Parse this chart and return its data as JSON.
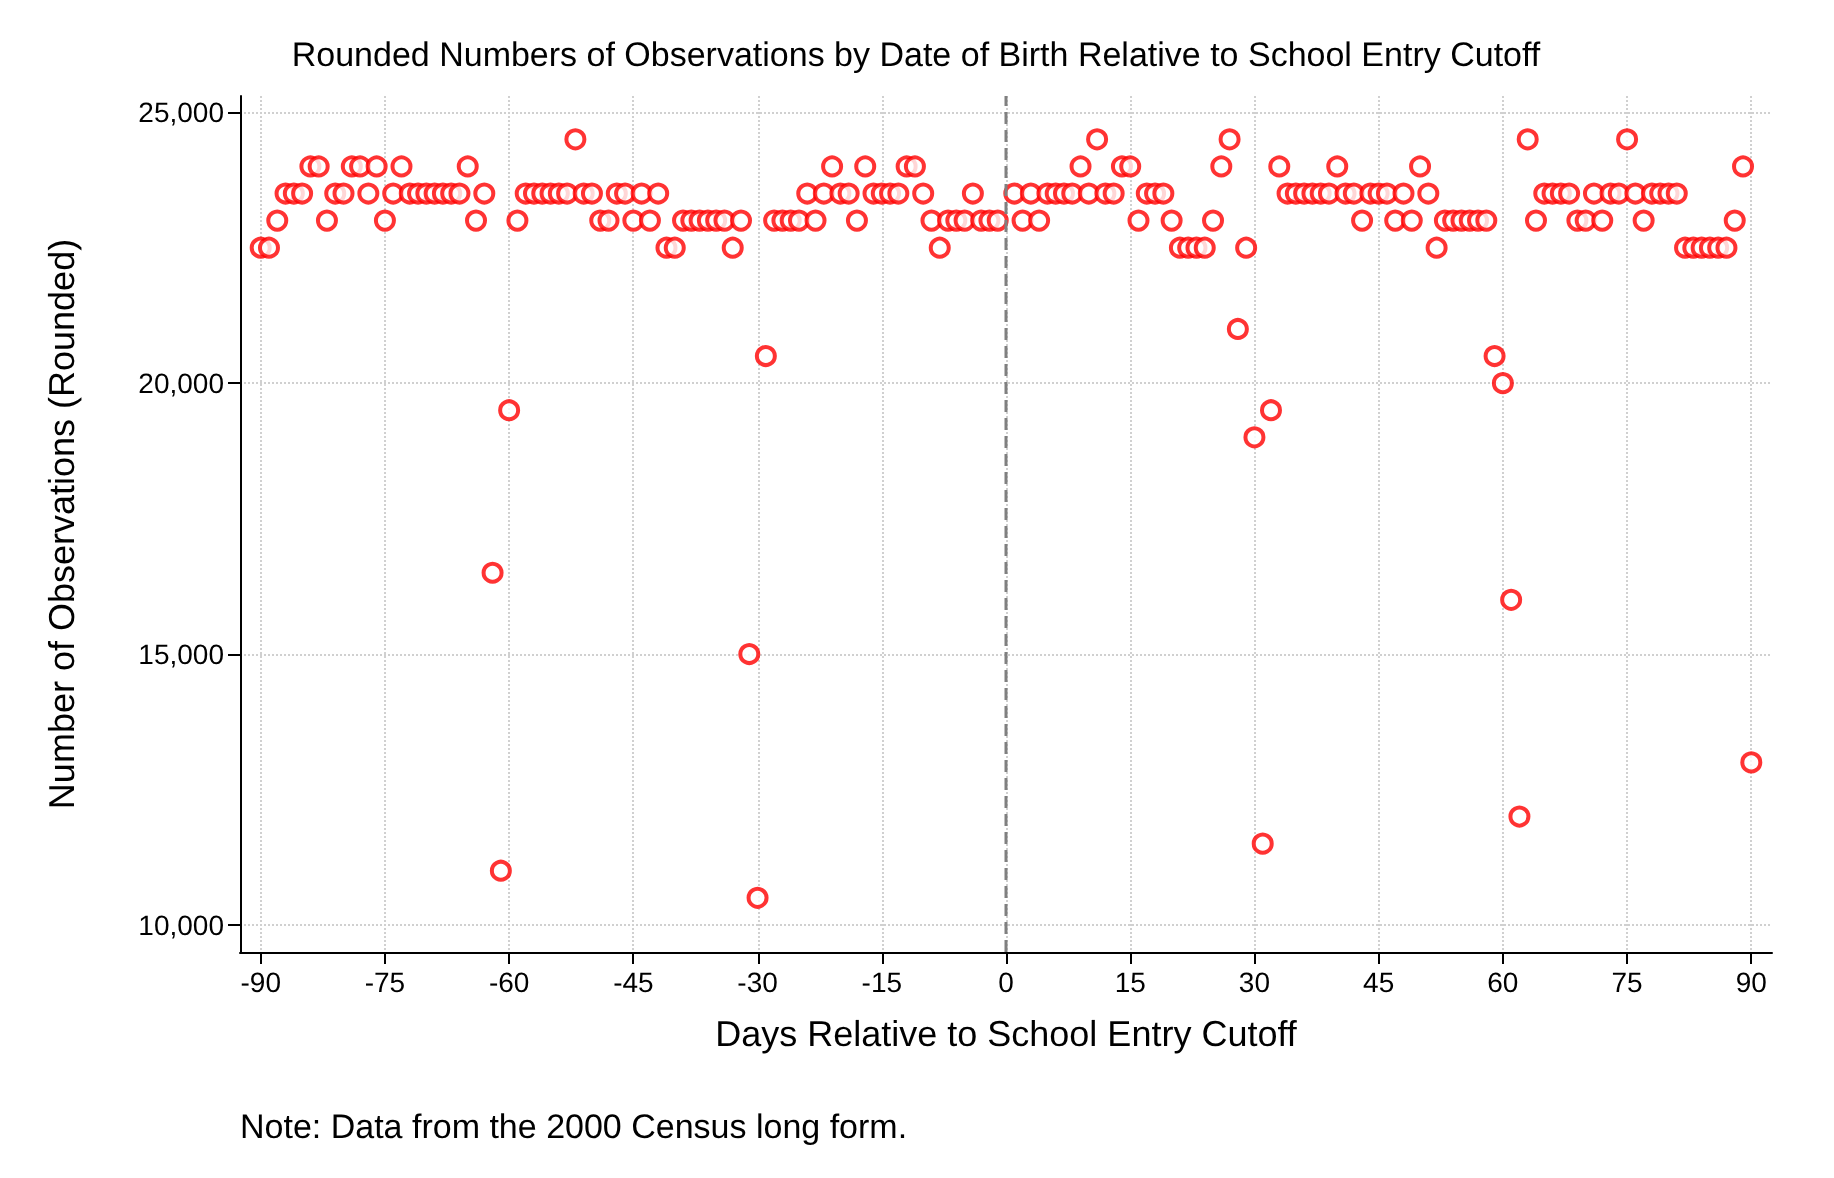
{
  "chart_data": {
    "type": "scatter",
    "title": "Rounded Numbers of Observations by Date of Birth Relative to School Entry Cutoff",
    "xlabel": "Days Relative to School Entry Cutoff",
    "ylabel": "Number of Observations (Rounded)",
    "annotations": [
      "Note: Data from the 2000 Census long form."
    ],
    "x": [
      -90,
      -89,
      -88,
      -87,
      -86,
      -85,
      -84,
      -83,
      -82,
      -81,
      -80,
      -79,
      -78,
      -77,
      -76,
      -75,
      -74,
      -73,
      -72,
      -71,
      -70,
      -69,
      -68,
      -67,
      -66,
      -65,
      -64,
      -63,
      -62,
      -61,
      -60,
      -59,
      -58,
      -57,
      -56,
      -55,
      -54,
      -53,
      -52,
      -51,
      -50,
      -49,
      -48,
      -47,
      -46,
      -45,
      -44,
      -43,
      -42,
      -41,
      -40,
      -39,
      -38,
      -37,
      -36,
      -35,
      -34,
      -33,
      -32,
      -31,
      -30,
      -29,
      -28,
      -27,
      -26,
      -25,
      -24,
      -23,
      -22,
      -21,
      -20,
      -19,
      -18,
      -17,
      -16,
      -15,
      -14,
      -13,
      -12,
      -11,
      -10,
      -9,
      -8,
      -7,
      -6,
      -5,
      -4,
      -3,
      -2,
      -1,
      0,
      1,
      2,
      3,
      4,
      5,
      6,
      7,
      8,
      9,
      10,
      11,
      12,
      13,
      14,
      15,
      16,
      17,
      18,
      19,
      20,
      21,
      22,
      23,
      24,
      25,
      26,
      27,
      28,
      29,
      30,
      31,
      32,
      33,
      34,
      35,
      36,
      37,
      38,
      39,
      40,
      41,
      42,
      43,
      44,
      45,
      46,
      47,
      48,
      49,
      50,
      51,
      52,
      53,
      54,
      55,
      56,
      57,
      58,
      59,
      60,
      61,
      62,
      63,
      64,
      65,
      66,
      67,
      68,
      69,
      70,
      71,
      72,
      73,
      74,
      75,
      76,
      77,
      78,
      79,
      80,
      81,
      82,
      83,
      84,
      85,
      86,
      87,
      88,
      89,
      90
    ],
    "series": [
      {
        "color": "#ff0000",
        "values": [
          22500,
          22500,
          23000,
          23500,
          23500,
          23500,
          24000,
          24000,
          23000,
          23500,
          23500,
          24000,
          24000,
          23500,
          24000,
          23000,
          23500,
          24000,
          23500,
          23500,
          23500,
          23500,
          23500,
          23500,
          23500,
          24000,
          23000,
          23500,
          16500,
          11000,
          19500,
          23000,
          23500,
          23500,
          23500,
          23500,
          23500,
          23500,
          24500,
          23500,
          23500,
          23000,
          23000,
          23500,
          23500,
          23000,
          23500,
          23000,
          23500,
          22500,
          22500,
          23000,
          23000,
          23000,
          23000,
          23000,
          23000,
          22500,
          23000,
          15000,
          10500,
          20500,
          23000,
          23000,
          23000,
          23000,
          23500,
          23000,
          23500,
          24000,
          23500,
          23500,
          23000,
          24000,
          23500,
          23500,
          23500,
          23500,
          24000,
          24000,
          23500,
          23000,
          22500,
          23000,
          23000,
          23000,
          23500,
          23000,
          23000,
          23000,
          null,
          23500,
          23000,
          23500,
          23000,
          23500,
          23500,
          23500,
          23500,
          24000,
          23500,
          24500,
          23500,
          23500,
          24000,
          24000,
          23000,
          23500,
          23500,
          23500,
          23000,
          22500,
          22500,
          22500,
          22500,
          23000,
          24000,
          24500,
          21000,
          22500,
          19000,
          11500,
          19500,
          24000,
          23500,
          23500,
          23500,
          23500,
          23500,
          23500,
          24000,
          23500,
          23500,
          23000,
          23500,
          23500,
          23500,
          23000,
          23500,
          23000,
          24000,
          23500,
          22500,
          23000,
          23000,
          23000,
          23000,
          23000,
          23000,
          20500,
          20000,
          16000,
          12000,
          24500,
          23000,
          23500,
          23500,
          23500,
          23500,
          23000,
          23000,
          23500,
          23000,
          23500,
          23500,
          24500,
          23500,
          23000,
          23500,
          23500,
          23500,
          23500,
          22500,
          22500,
          22500,
          22500,
          22500,
          22500,
          23000,
          24000,
          13000
        ]
      }
    ],
    "marker": "circle",
    "xlim": [
      -92.5,
      92.5
    ],
    "xticks": [
      -90,
      -75,
      -60,
      -45,
      -30,
      -15,
      0,
      15,
      30,
      45,
      60,
      75,
      90
    ],
    "ylim": [
      9500,
      25300
    ],
    "yticks": [
      {
        "value": 10000,
        "label": "10,000"
      },
      {
        "value": 15000,
        "label": "15,000"
      },
      {
        "value": 20000,
        "label": "20,000"
      },
      {
        "value": 25000,
        "label": "25,000"
      }
    ],
    "grid": true,
    "ref_lines": [
      {
        "axis": "x",
        "value": 0,
        "color": "#808080",
        "line_style": "dashed"
      }
    ]
  }
}
